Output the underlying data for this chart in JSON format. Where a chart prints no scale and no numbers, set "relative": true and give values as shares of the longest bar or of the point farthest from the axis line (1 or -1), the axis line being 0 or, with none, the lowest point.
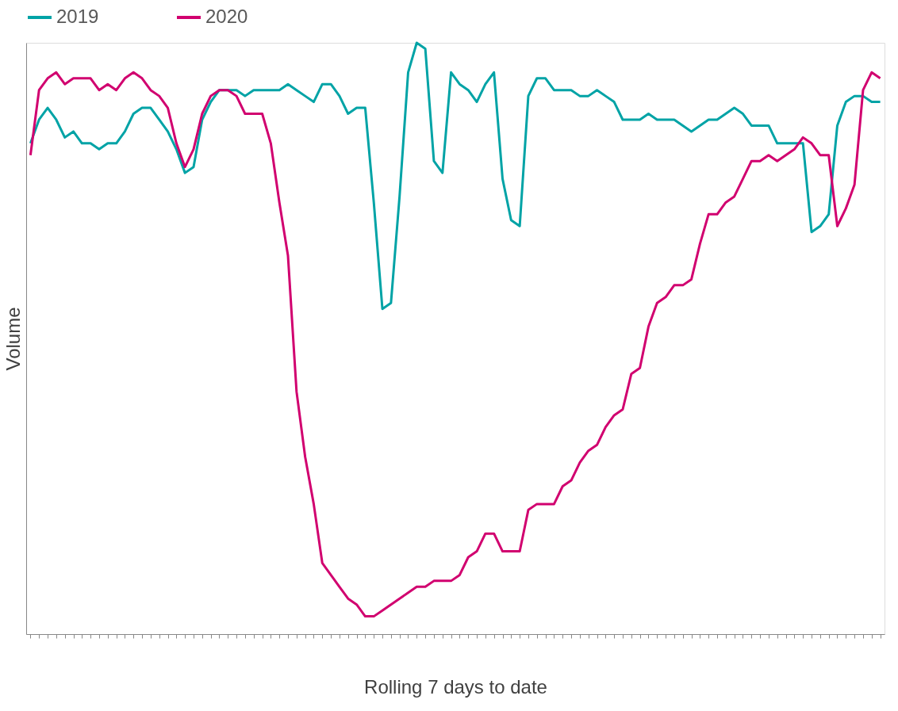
{
  "chart_data": {
    "type": "line",
    "relative": true,
    "xlabel": "Rolling 7 days to date",
    "ylabel": "Volume",
    "legend": "top",
    "grid": false,
    "marker": "none",
    "line_style": "solid",
    "tick_labels": false,
    "categories": [
      null,
      null,
      null,
      null,
      null,
      null,
      null,
      null,
      null,
      null,
      null,
      null,
      null,
      null,
      null,
      null,
      null,
      null,
      null,
      null,
      null,
      null,
      null,
      null,
      null,
      null,
      null,
      null,
      null,
      null,
      null,
      null,
      null,
      null,
      null,
      null,
      null,
      null,
      null,
      null,
      null,
      null,
      null,
      null,
      null,
      null,
      null,
      null,
      null,
      null,
      null,
      null,
      null,
      null,
      null,
      null,
      null,
      null,
      null,
      null,
      null,
      null,
      null,
      null,
      null,
      null,
      null,
      null,
      null,
      null,
      null,
      null,
      null,
      null,
      null,
      null,
      null,
      null,
      null,
      null,
      null,
      null,
      null,
      null,
      null,
      null,
      null,
      null,
      null,
      null,
      null,
      null,
      null,
      null,
      null,
      null,
      null,
      null,
      null,
      null
    ],
    "series": [
      {
        "name": "2019",
        "color": "#00a3a6",
        "values": [
          0.83,
          0.87,
          0.89,
          0.87,
          0.84,
          0.85,
          0.83,
          0.83,
          0.82,
          0.83,
          0.83,
          0.85,
          0.88,
          0.89,
          0.89,
          0.87,
          0.85,
          0.82,
          0.78,
          0.79,
          0.87,
          0.9,
          0.92,
          0.92,
          0.92,
          0.91,
          0.92,
          0.92,
          0.92,
          0.92,
          0.93,
          0.92,
          0.91,
          0.9,
          0.93,
          0.93,
          0.91,
          0.88,
          0.89,
          0.89,
          0.73,
          0.55,
          0.56,
          0.74,
          0.95,
          1.0,
          0.99,
          0.8,
          0.78,
          0.95,
          0.93,
          0.92,
          0.9,
          0.93,
          0.95,
          0.77,
          0.7,
          0.69,
          0.91,
          0.94,
          0.94,
          0.92,
          0.92,
          0.92,
          0.91,
          0.91,
          0.92,
          0.91,
          0.9,
          0.87,
          0.87,
          0.87,
          0.88,
          0.87,
          0.87,
          0.87,
          0.86,
          0.85,
          0.86,
          0.87,
          0.87,
          0.88,
          0.89,
          0.88,
          0.86,
          0.86,
          0.86,
          0.83,
          0.83,
          0.83,
          0.83,
          0.68,
          0.69,
          0.71,
          0.86,
          0.9,
          0.91,
          0.91,
          0.9,
          0.9
        ]
      },
      {
        "name": "2020",
        "color": "#d1006f",
        "values": [
          0.81,
          0.92,
          0.94,
          0.95,
          0.93,
          0.94,
          0.94,
          0.94,
          0.92,
          0.93,
          0.92,
          0.94,
          0.95,
          0.94,
          0.92,
          0.91,
          0.89,
          0.83,
          0.79,
          0.82,
          0.88,
          0.91,
          0.92,
          0.92,
          0.91,
          0.88,
          0.88,
          0.88,
          0.83,
          0.73,
          0.64,
          0.41,
          0.3,
          0.22,
          0.12,
          0.1,
          0.08,
          0.06,
          0.05,
          0.03,
          0.03,
          0.04,
          0.05,
          0.06,
          0.07,
          0.08,
          0.08,
          0.09,
          0.09,
          0.09,
          0.1,
          0.13,
          0.14,
          0.17,
          0.17,
          0.14,
          0.14,
          0.14,
          0.21,
          0.22,
          0.22,
          0.22,
          0.25,
          0.26,
          0.29,
          0.31,
          0.32,
          0.35,
          0.37,
          0.38,
          0.44,
          0.45,
          0.52,
          0.56,
          0.57,
          0.59,
          0.59,
          0.6,
          0.66,
          0.71,
          0.71,
          0.73,
          0.74,
          0.77,
          0.8,
          0.8,
          0.81,
          0.8,
          0.81,
          0.82,
          0.84,
          0.83,
          0.81,
          0.81,
          0.69,
          0.72,
          0.76,
          0.92,
          0.95,
          0.94
        ]
      }
    ]
  }
}
